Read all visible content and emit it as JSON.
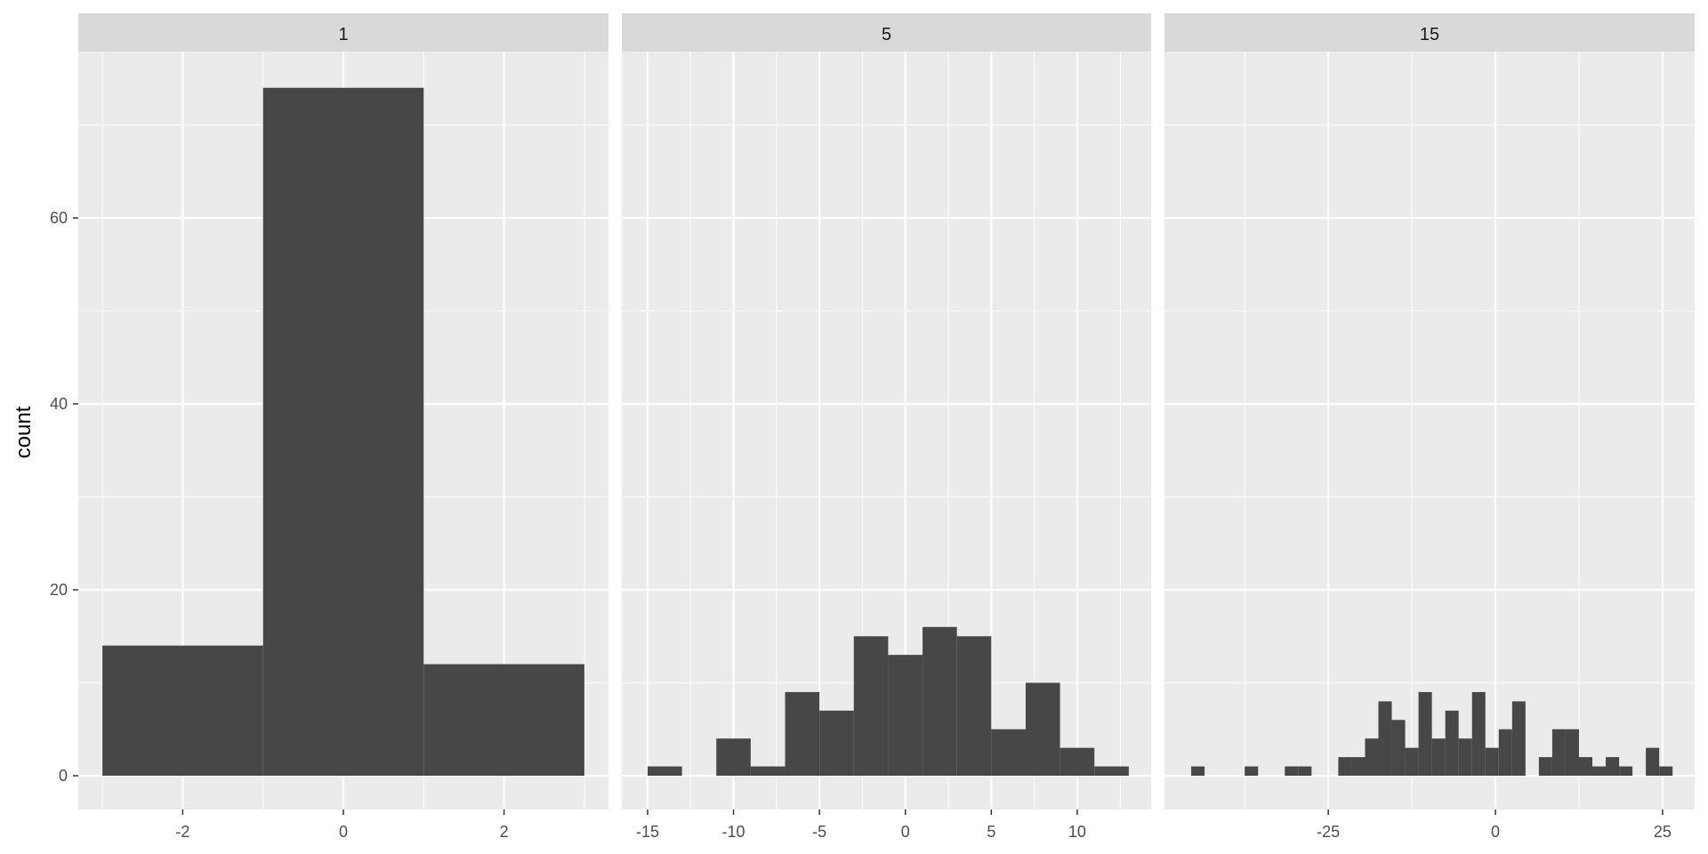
{
  "chart_data": {
    "type": "bar",
    "ylabel": "count",
    "xlabel": "",
    "ylim": [
      0,
      75
    ],
    "y_ticks": [
      0,
      20,
      40,
      60
    ],
    "y_tick_labels": [
      "0",
      "20",
      "40",
      "60"
    ],
    "grid": true,
    "colors": {
      "panel_bg": "#EBEBEB",
      "strip_bg": "#D9D9D9",
      "grid": "#FFFFFF",
      "bar_fill": "#474747"
    },
    "facets": [
      {
        "label": "1",
        "xlim": [
          -3.3,
          3.3
        ],
        "x_ticks": [
          -2,
          0,
          2
        ],
        "x_tick_labels": [
          "-2",
          "0",
          "2"
        ],
        "bins": [
          {
            "x0": -3,
            "x1": -1,
            "count": 14
          },
          {
            "x0": -1,
            "x1": 1,
            "count": 74
          },
          {
            "x0": 1,
            "x1": 3,
            "count": 12
          }
        ]
      },
      {
        "label": "5",
        "xlim": [
          -16.5,
          14.3
        ],
        "x_ticks": [
          -15,
          -10,
          -5,
          0,
          5,
          10
        ],
        "x_tick_labels": [
          "-15",
          "-10",
          "-5",
          "0",
          "5",
          "10"
        ],
        "bins": [
          {
            "x0": -15,
            "x1": -13,
            "count": 1
          },
          {
            "x0": -13,
            "x1": -11,
            "count": 0
          },
          {
            "x0": -11,
            "x1": -9,
            "count": 4
          },
          {
            "x0": -9,
            "x1": -7,
            "count": 1
          },
          {
            "x0": -7,
            "x1": -5,
            "count": 9
          },
          {
            "x0": -5,
            "x1": -3,
            "count": 7
          },
          {
            "x0": -3,
            "x1": -1,
            "count": 15
          },
          {
            "x0": -1,
            "x1": 1,
            "count": 13
          },
          {
            "x0": 1,
            "x1": 3,
            "count": 16
          },
          {
            "x0": 3,
            "x1": 5,
            "count": 15
          },
          {
            "x0": 5,
            "x1": 7,
            "count": 5
          },
          {
            "x0": 7,
            "x1": 9,
            "count": 10
          },
          {
            "x0": 9,
            "x1": 11,
            "count": 3
          },
          {
            "x0": 11,
            "x1": 13,
            "count": 1
          }
        ]
      },
      {
        "label": "15",
        "xlim": [
          -49.5,
          29.8
        ],
        "x_ticks": [
          -25,
          0,
          25
        ],
        "x_tick_labels": [
          "-25",
          "0",
          "25"
        ],
        "bins": [
          {
            "x0": -45.5,
            "x1": -43.5,
            "count": 1
          },
          {
            "x0": -37.5,
            "x1": -35.5,
            "count": 1
          },
          {
            "x0": -31.5,
            "x1": -29.5,
            "count": 1
          },
          {
            "x0": -29.5,
            "x1": -27.5,
            "count": 1
          },
          {
            "x0": -23.5,
            "x1": -21.5,
            "count": 2
          },
          {
            "x0": -21.5,
            "x1": -19.5,
            "count": 2
          },
          {
            "x0": -19.5,
            "x1": -17.5,
            "count": 4
          },
          {
            "x0": -17.5,
            "x1": -15.5,
            "count": 8
          },
          {
            "x0": -15.5,
            "x1": -13.5,
            "count": 6
          },
          {
            "x0": -13.5,
            "x1": -11.5,
            "count": 3
          },
          {
            "x0": -11.5,
            "x1": -9.5,
            "count": 9
          },
          {
            "x0": -9.5,
            "x1": -7.5,
            "count": 4
          },
          {
            "x0": -7.5,
            "x1": -5.5,
            "count": 7
          },
          {
            "x0": -5.5,
            "x1": -3.5,
            "count": 4
          },
          {
            "x0": -3.5,
            "x1": -1.5,
            "count": 9
          },
          {
            "x0": -1.5,
            "x1": 0.5,
            "count": 3
          },
          {
            "x0": 0.5,
            "x1": 2.5,
            "count": 5
          },
          {
            "x0": 2.5,
            "x1": 4.5,
            "count": 8
          },
          {
            "x0": 6.5,
            "x1": 8.5,
            "count": 2
          },
          {
            "x0": 8.5,
            "x1": 10.5,
            "count": 5
          },
          {
            "x0": 10.5,
            "x1": 12.5,
            "count": 5
          },
          {
            "x0": 12.5,
            "x1": 14.5,
            "count": 2
          },
          {
            "x0": 14.5,
            "x1": 16.5,
            "count": 1
          },
          {
            "x0": 16.5,
            "x1": 18.5,
            "count": 2
          },
          {
            "x0": 18.5,
            "x1": 20.5,
            "count": 1
          },
          {
            "x0": 22.5,
            "x1": 24.5,
            "count": 3
          },
          {
            "x0": 24.5,
            "x1": 26.5,
            "count": 1
          }
        ]
      }
    ]
  }
}
